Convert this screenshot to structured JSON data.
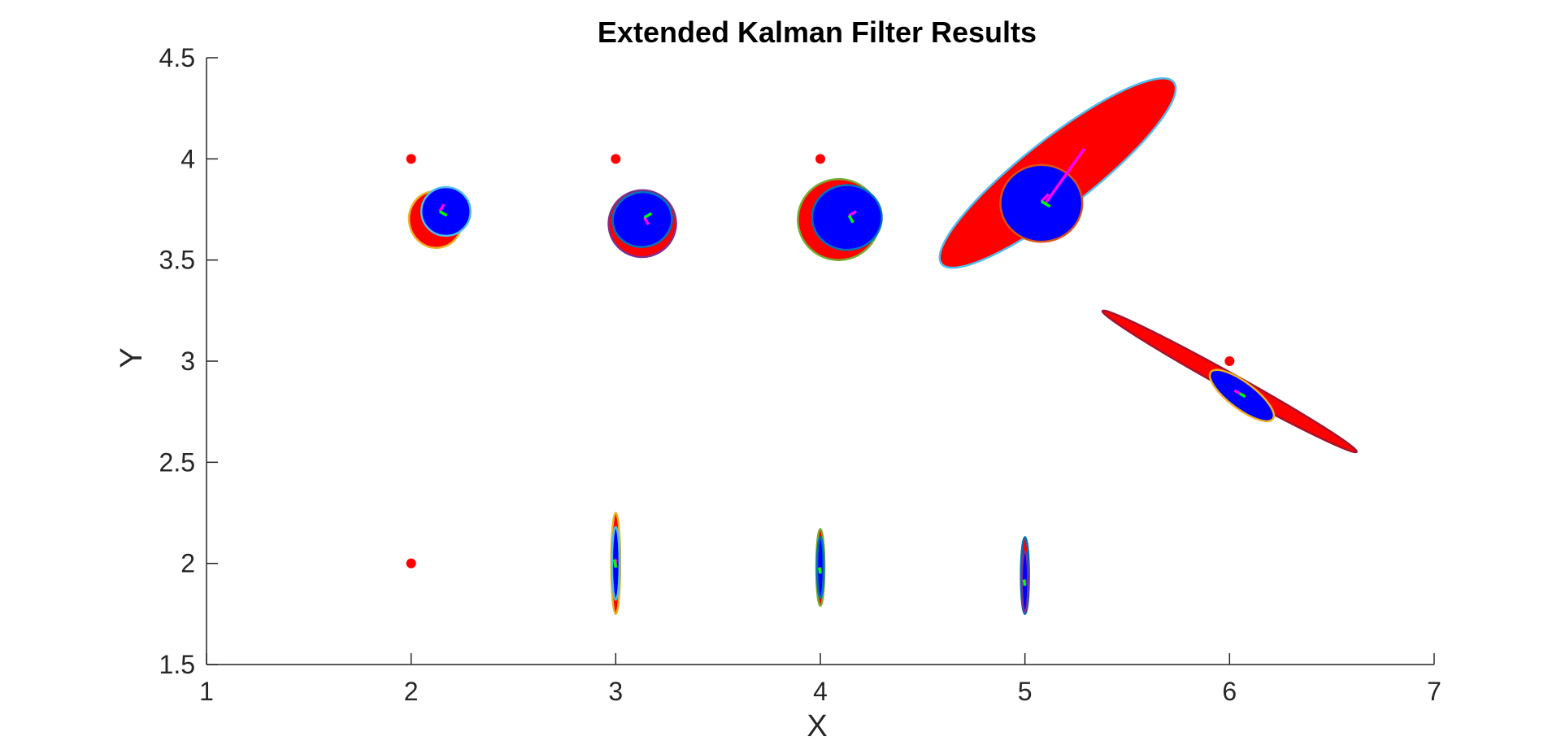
{
  "chart_data": {
    "type": "scatter",
    "title": "Extended Kalman Filter Results",
    "xlabel": "X",
    "ylabel": "Y",
    "xlim": [
      1,
      7
    ],
    "ylim": [
      1.5,
      4.5
    ],
    "xticks": [
      1,
      2,
      3,
      4,
      5,
      6,
      7
    ],
    "yticks": [
      1.5,
      2,
      2.5,
      3,
      3.5,
      4,
      4.5
    ],
    "grid": false,
    "colors": {
      "landmark": "#ff0000",
      "covariance_fill_outer": "#ff0000",
      "covariance_fill_inner": "#0000ff",
      "heading_a": "#ff00ff",
      "heading_b": "#00ff00"
    },
    "landmarks": [
      {
        "x": 2,
        "y": 4
      },
      {
        "x": 3,
        "y": 4
      },
      {
        "x": 4,
        "y": 4
      },
      {
        "x": 6,
        "y": 3
      },
      {
        "x": 2,
        "y": 2
      }
    ],
    "ellipses": [
      {
        "cx": 2.12,
        "cy": 3.7,
        "rx": 0.13,
        "ry": 0.14,
        "angle": 10,
        "fill": "#ff0000",
        "stroke": "#edb120"
      },
      {
        "cx": 2.17,
        "cy": 3.74,
        "rx": 0.12,
        "ry": 0.12,
        "angle": 0,
        "fill": "#0000ff",
        "stroke": "#4dbeee"
      },
      {
        "cx": 3.13,
        "cy": 3.68,
        "rx": 0.165,
        "ry": 0.165,
        "angle": 15,
        "fill": "#ff0000",
        "stroke": "#7e2f8e"
      },
      {
        "cx": 3.13,
        "cy": 3.7,
        "rx": 0.145,
        "ry": 0.135,
        "angle": 10,
        "fill": "#0000ff",
        "stroke": "#0072bd"
      },
      {
        "cx": 4.09,
        "cy": 3.7,
        "rx": 0.2,
        "ry": 0.2,
        "angle": 10,
        "fill": "#ff0000",
        "stroke": "#77ac30"
      },
      {
        "cx": 4.13,
        "cy": 3.71,
        "rx": 0.17,
        "ry": 0.16,
        "angle": 0,
        "fill": "#0000ff",
        "stroke": "#0072bd"
      },
      {
        "cx": 5.16,
        "cy": 3.93,
        "rx": 0.72,
        "ry": 0.17,
        "angle": 38,
        "fill": "#ff0000",
        "stroke": "#4dbeee"
      },
      {
        "cx": 5.08,
        "cy": 3.78,
        "rx": 0.2,
        "ry": 0.19,
        "angle": 0,
        "fill": "#0000ff",
        "stroke": "#d95319"
      },
      {
        "cx": 6.0,
        "cy": 2.9,
        "rx": 0.71,
        "ry": 0.04,
        "angle": -29,
        "fill": "#ff0000",
        "stroke": "#a2142f"
      },
      {
        "cx": 6.06,
        "cy": 2.83,
        "rx": 0.19,
        "ry": 0.065,
        "angle": -37,
        "fill": "#0000ff",
        "stroke": "#edb120"
      },
      {
        "cx": 3.0,
        "cy": 2.0,
        "rx": 0.022,
        "ry": 0.25,
        "angle": 0,
        "fill": "#ff0000",
        "stroke": "#edb120"
      },
      {
        "cx": 3.0,
        "cy": 2.0,
        "rx": 0.018,
        "ry": 0.18,
        "angle": 0,
        "fill": "#0000ff",
        "stroke": "#4dbeee"
      },
      {
        "cx": 4.0,
        "cy": 1.98,
        "rx": 0.02,
        "ry": 0.19,
        "angle": 0,
        "fill": "#ff0000",
        "stroke": "#77ac30"
      },
      {
        "cx": 4.0,
        "cy": 1.98,
        "rx": 0.016,
        "ry": 0.15,
        "angle": 0,
        "fill": "#0000ff",
        "stroke": "#0072bd"
      },
      {
        "cx": 5.0,
        "cy": 1.94,
        "rx": 0.02,
        "ry": 0.19,
        "angle": 0,
        "fill": "#ff0000",
        "stroke": "#0072bd"
      },
      {
        "cx": 5.0,
        "cy": 1.91,
        "rx": 0.015,
        "ry": 0.15,
        "angle": 0,
        "fill": "#0000ff",
        "stroke": "#7e2f8e"
      }
    ],
    "heading_markers": [
      {
        "x": 2.14,
        "y": 3.74,
        "angle_a": 60,
        "angle_b": 330,
        "length": 0.04
      },
      {
        "x": 3.14,
        "y": 3.71,
        "angle_a": 300,
        "angle_b": 30,
        "length": 0.04
      },
      {
        "x": 4.14,
        "y": 3.72,
        "angle_a": 30,
        "angle_b": 300,
        "length": 0.04
      },
      {
        "x": 5.08,
        "y": 3.79,
        "angle_a": 45,
        "angle_b": 330,
        "length": 0.05
      },
      {
        "x": 6.05,
        "y": 2.84,
        "angle_a": 150,
        "angle_b": 330,
        "length": 0.03
      },
      {
        "x": 3.0,
        "y": 1.98,
        "angle_a": 90,
        "angle_b": 100,
        "length": 0.04
      },
      {
        "x": 4.0,
        "y": 1.95,
        "angle_a": 90,
        "angle_b": 100,
        "length": 0.03
      },
      {
        "x": 5.0,
        "y": 1.89,
        "angle_a": 90,
        "angle_b": 100,
        "length": 0.03
      }
    ],
    "heading_tail": {
      "x1": 5.1,
      "y1": 3.78,
      "x2": 5.29,
      "y2": 4.05
    }
  }
}
